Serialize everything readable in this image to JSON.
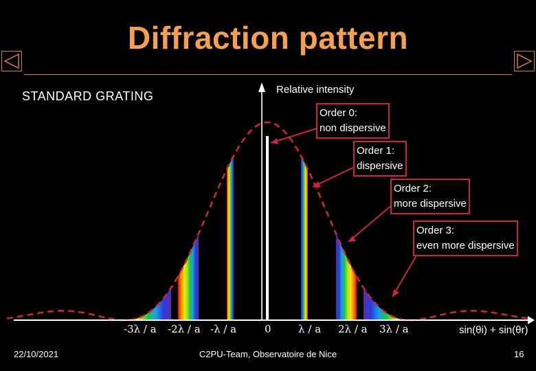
{
  "slide": {
    "title": "Diffraction pattern",
    "subtitle": "STANDARD GRATING",
    "date": "22/10/2021",
    "footer": "C2PU-Team, Observatoire de Nice",
    "page_number": "16"
  },
  "nav": {
    "prev_icon": "triangle-left-icon",
    "next_icon": "triangle-right-icon"
  },
  "colors": {
    "title": "#f4a050",
    "envelope": "#c8283c",
    "callout_border": "#c8283c"
  },
  "axes": {
    "y_label": "Relative intensity",
    "x_label": "sin(θi) + sin(θr)",
    "ticks": [
      "-3λ / a",
      "-2λ / a",
      "-λ / a",
      "0",
      "λ / a",
      "2λ / a",
      "3λ / a"
    ]
  },
  "callouts": [
    {
      "line1": "Order 0:",
      "line2": "non dispersive"
    },
    {
      "line1": "Order 1:",
      "line2": "dispersive"
    },
    {
      "line1": "Order 2:",
      "line2": "more dispersive"
    },
    {
      "line1": "Order 3:",
      "line2": "even more dispersive"
    }
  ]
}
